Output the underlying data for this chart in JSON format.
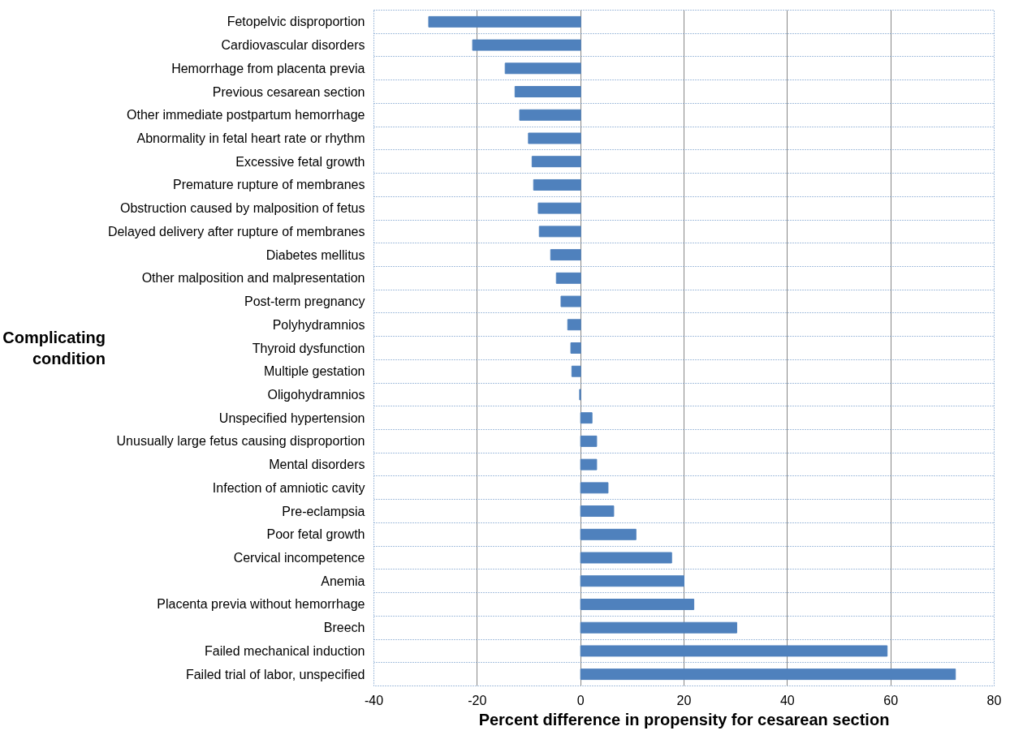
{
  "chart_data": {
    "type": "bar",
    "orientation": "horizontal",
    "xlabel": "Percent difference in propensity for cesarean section",
    "ylabel": "Complicating condition",
    "categories": [
      "Fetopelvic disproportion",
      "Cardiovascular disorders",
      "Hemorrhage from placenta previa",
      "Previous cesarean section",
      "Other immediate postpartum hemorrhage",
      "Abnormality in fetal heart rate or rhythm",
      "Excessive fetal growth",
      "Premature rupture of membranes",
      "Obstruction caused by malposition of fetus",
      "Delayed delivery after rupture of membranes",
      "Diabetes mellitus",
      "Other malposition and malpresentation",
      "Post-term pregnancy",
      "Polyhydramnios",
      "Thyroid dysfunction",
      "Multiple gestation",
      "Oligohydramnios",
      "Unspecified hypertension",
      "Unusually large fetus causing disproportion",
      "Mental disorders",
      "Infection of amniotic cavity",
      "Pre-eclampsia",
      "Poor fetal growth",
      "Cervical incompetence",
      "Anemia",
      "Placenta previa without hemorrhage",
      "Breech",
      "Failed mechanical induction",
      "Failed trial of labor, unspecified"
    ],
    "values": [
      -29.4,
      -20.9,
      -14.6,
      -12.7,
      -11.8,
      -10.1,
      -9.4,
      -9.1,
      -8.2,
      -8.0,
      -5.8,
      -4.7,
      -3.8,
      -2.5,
      -1.9,
      -1.7,
      -0.2,
      2.2,
      3.1,
      3.1,
      5.3,
      6.4,
      10.7,
      17.6,
      20.0,
      21.9,
      30.2,
      59.3,
      72.5
    ],
    "color": "#4f81bd",
    "xlim": [
      -40,
      80
    ],
    "xticks": [
      -40,
      -20,
      0,
      20,
      40,
      60,
      80
    ],
    "grid": true
  }
}
